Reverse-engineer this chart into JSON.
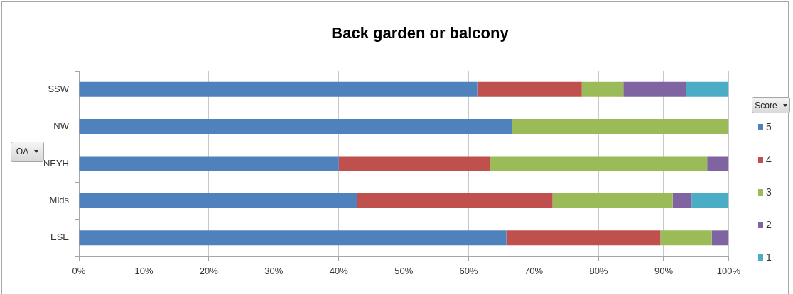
{
  "chart_data": {
    "type": "bar",
    "orientation": "horizontal",
    "stacked": true,
    "title": "Back garden or balcony",
    "ylabel": "OA",
    "legend_title": "Score",
    "legend": "right",
    "grid": "x",
    "categories": [
      "SSW",
      "NW",
      "NEYH",
      "Mids",
      "ESE"
    ],
    "series": [
      {
        "name": "5",
        "color": "#4f81bd",
        "values": [
          61.3,
          66.7,
          40.0,
          42.8,
          65.8
        ]
      },
      {
        "name": "4",
        "color": "#c0504d",
        "values": [
          16.1,
          null,
          23.3,
          30.1,
          23.7
        ]
      },
      {
        "name": "3",
        "color": "#9bbb59",
        "values": [
          6.4,
          33.3,
          33.4,
          18.5,
          7.9
        ]
      },
      {
        "name": "2",
        "color": "#8064a2",
        "values": [
          9.7,
          null,
          3.3,
          2.9,
          2.6
        ]
      },
      {
        "name": "1",
        "color": "#4bacc6",
        "values": [
          6.5,
          null,
          null,
          5.7,
          null
        ]
      }
    ],
    "xlim": [
      0,
      100
    ],
    "xticks": [
      {
        "value": 0,
        "label": "0%"
      },
      {
        "value": 10,
        "label": "10%"
      },
      {
        "value": 20,
        "label": "20%"
      },
      {
        "value": 30,
        "label": "30%"
      },
      {
        "value": 40,
        "label": "40%"
      },
      {
        "value": 50,
        "label": "50%"
      },
      {
        "value": 60,
        "label": "60%"
      },
      {
        "value": 70,
        "label": "70%"
      },
      {
        "value": 80,
        "label": "80%"
      },
      {
        "value": 90,
        "label": "90%"
      },
      {
        "value": 100,
        "label": "100%"
      }
    ]
  }
}
